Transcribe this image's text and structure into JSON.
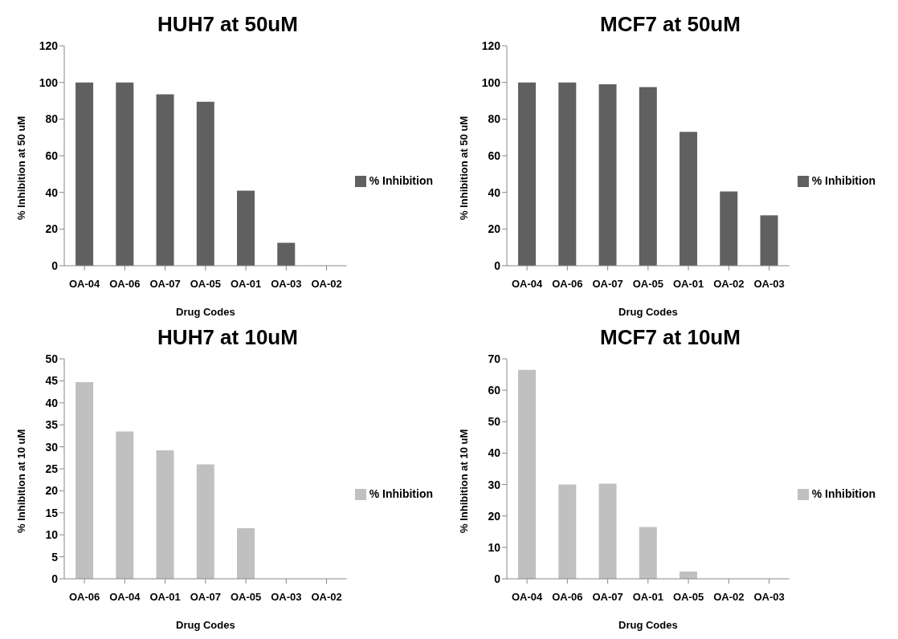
{
  "chart_data": [
    {
      "type": "bar",
      "title": "HUH7 at 50uM",
      "xlabel": "Drug Codes",
      "ylabel": "% Inhibition  at 50 uM",
      "categories": [
        "OA-04",
        "OA-06",
        "OA-07",
        "OA-05",
        "OA-01",
        "OA-03",
        "OA-02"
      ],
      "series": [
        {
          "name": "% Inhibition",
          "color": "#606060",
          "values": [
            100,
            100,
            93.5,
            89.5,
            41,
            12.5,
            0
          ]
        }
      ],
      "ylim": [
        0,
        120
      ],
      "yticks": [
        0,
        20,
        40,
        60,
        80,
        100,
        120
      ],
      "grid": false,
      "legend": "right"
    },
    {
      "type": "bar",
      "title": "MCF7 at 50uM",
      "xlabel": "Drug Codes",
      "ylabel": "% Inhibition at 50 uM",
      "categories": [
        "OA-04",
        "OA-06",
        "OA-07",
        "OA-05",
        "OA-01",
        "OA-02",
        "OA-03"
      ],
      "series": [
        {
          "name": "% Inhibition",
          "color": "#606060",
          "values": [
            100,
            100,
            99,
            97.5,
            73,
            40.5,
            27.5
          ]
        }
      ],
      "ylim": [
        0,
        120
      ],
      "yticks": [
        0,
        20,
        40,
        60,
        80,
        100,
        120
      ],
      "grid": false,
      "legend": "right"
    },
    {
      "type": "bar",
      "title": "HUH7 at 10uM",
      "xlabel": "Drug Codes",
      "ylabel": "% Inhibition at 10 uM",
      "categories": [
        "OA-06",
        "OA-04",
        "OA-01",
        "OA-07",
        "OA-05",
        "OA-03",
        "OA-02"
      ],
      "series": [
        {
          "name": "% Inhibition",
          "color": "#c0c0c0",
          "values": [
            44.7,
            33.5,
            29.2,
            26,
            11.5,
            0,
            0
          ]
        }
      ],
      "ylim": [
        0,
        50
      ],
      "yticks": [
        0,
        5,
        10,
        15,
        20,
        25,
        30,
        35,
        40,
        45,
        50
      ],
      "grid": false,
      "legend": "right"
    },
    {
      "type": "bar",
      "title": "MCF7 at 10uM",
      "xlabel": "Drug Codes",
      "ylabel": "% Inhibition at 10 uM",
      "categories": [
        "OA-04",
        "OA-06",
        "OA-07",
        "OA-01",
        "OA-05",
        "OA-02",
        "OA-03"
      ],
      "series": [
        {
          "name": "% Inhibition",
          "color": "#c0c0c0",
          "values": [
            66.5,
            30,
            30.3,
            16.5,
            2.3,
            0,
            0
          ]
        }
      ],
      "ylim": [
        0,
        70
      ],
      "yticks": [
        0,
        10,
        20,
        30,
        40,
        50,
        60,
        70
      ],
      "grid": false,
      "legend": "right"
    }
  ]
}
